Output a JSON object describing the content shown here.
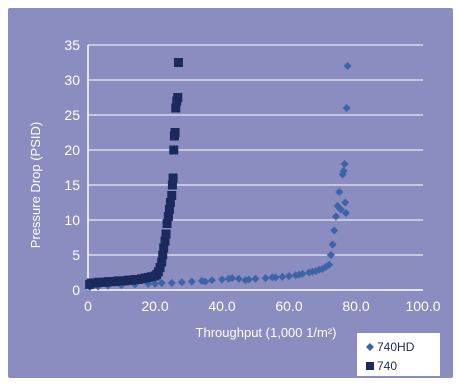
{
  "chart_data": {
    "type": "scatter",
    "title": "",
    "xlabel": "Throughput (1,000 1/m²)",
    "ylabel": "Pressure Drop (PSID)",
    "xlim": [
      0,
      100
    ],
    "ylim": [
      0,
      35
    ],
    "x_ticks": [
      "0",
      "20.0",
      "40.0",
      "60.0",
      "80.0",
      "100.0"
    ],
    "y_ticks": [
      "0",
      "5",
      "10",
      "15",
      "20",
      "25",
      "30",
      "35"
    ],
    "grid": "horizontal",
    "legend_position": "bottom-right",
    "colors": {
      "background": "#ffffff",
      "plot_area": "#8b8cc0",
      "grid": "#ffffff",
      "text": "#ffffff",
      "series_740HD": "#3e64a8",
      "series_740": "#1a2a5c",
      "legend_text": "#1a2a5c"
    },
    "series": [
      {
        "name": "740HD",
        "marker": "diamond",
        "points": [
          [
            0.5,
            0.4
          ],
          [
            3,
            0.5
          ],
          [
            6,
            0.6
          ],
          [
            10,
            0.7
          ],
          [
            14,
            0.8
          ],
          [
            18,
            0.9
          ],
          [
            22,
            1.0
          ],
          [
            25,
            1.0
          ],
          [
            28,
            1.1
          ],
          [
            31,
            1.2
          ],
          [
            34,
            1.3
          ],
          [
            37,
            1.4
          ],
          [
            40,
            1.5
          ],
          [
            42,
            1.6
          ],
          [
            45,
            1.6
          ],
          [
            48,
            1.5
          ],
          [
            50,
            1.6
          ],
          [
            53,
            1.7
          ],
          [
            55,
            1.8
          ],
          [
            58,
            1.9
          ],
          [
            60,
            2.0
          ],
          [
            62,
            2.1
          ],
          [
            64,
            2.3
          ],
          [
            66,
            2.5
          ],
          [
            68,
            2.7
          ],
          [
            70,
            3.0
          ],
          [
            71,
            3.3
          ],
          [
            72,
            3.6
          ],
          [
            72.5,
            5.0
          ],
          [
            73,
            6.5
          ],
          [
            73.5,
            8.5
          ],
          [
            74,
            10.5
          ],
          [
            74.5,
            12.0
          ],
          [
            75,
            14.0
          ],
          [
            75.5,
            11.5
          ],
          [
            76,
            16.5
          ],
          [
            76.3,
            17.0
          ],
          [
            76.6,
            18.0
          ],
          [
            76.8,
            12.5
          ],
          [
            77,
            11.0
          ],
          [
            77.2,
            26.0
          ],
          [
            77.5,
            32.0
          ],
          [
            20,
            0.9
          ],
          [
            35,
            1.2
          ],
          [
            43,
            1.7
          ],
          [
            47,
            1.4
          ],
          [
            56,
            1.8
          ],
          [
            63,
            2.2
          ],
          [
            67,
            2.6
          ],
          [
            69,
            2.9
          ]
        ]
      },
      {
        "name": "740",
        "marker": "square",
        "points": [
          [
            0.5,
            0.8
          ],
          [
            1,
            1.0
          ],
          [
            2,
            1.0
          ],
          [
            3,
            1.1
          ],
          [
            4,
            1.1
          ],
          [
            5,
            1.1
          ],
          [
            6,
            1.2
          ],
          [
            7,
            1.2
          ],
          [
            8,
            1.2
          ],
          [
            9,
            1.3
          ],
          [
            10,
            1.3
          ],
          [
            11,
            1.3
          ],
          [
            12,
            1.4
          ],
          [
            13,
            1.4
          ],
          [
            14,
            1.5
          ],
          [
            15,
            1.5
          ],
          [
            16,
            1.6
          ],
          [
            17,
            1.7
          ],
          [
            18,
            1.8
          ],
          [
            19,
            1.9
          ],
          [
            20,
            2.0
          ],
          [
            20.5,
            2.2
          ],
          [
            21,
            2.6
          ],
          [
            21.5,
            3.2
          ],
          [
            22,
            4.0
          ],
          [
            22.3,
            5.0
          ],
          [
            22.6,
            6.0
          ],
          [
            23,
            7.0
          ],
          [
            23.3,
            8.0
          ],
          [
            23.6,
            9.5
          ],
          [
            24,
            10.5
          ],
          [
            24.3,
            11.5
          ],
          [
            24.6,
            12.5
          ],
          [
            25,
            13.5
          ],
          [
            25.2,
            15.0
          ],
          [
            25.4,
            16.0
          ],
          [
            25.6,
            20.0
          ],
          [
            25.8,
            22.0
          ],
          [
            26,
            22.5
          ],
          [
            26.2,
            26.0
          ],
          [
            26.5,
            27.0
          ],
          [
            26.8,
            27.5
          ],
          [
            27,
            32.5
          ]
        ]
      }
    ]
  }
}
